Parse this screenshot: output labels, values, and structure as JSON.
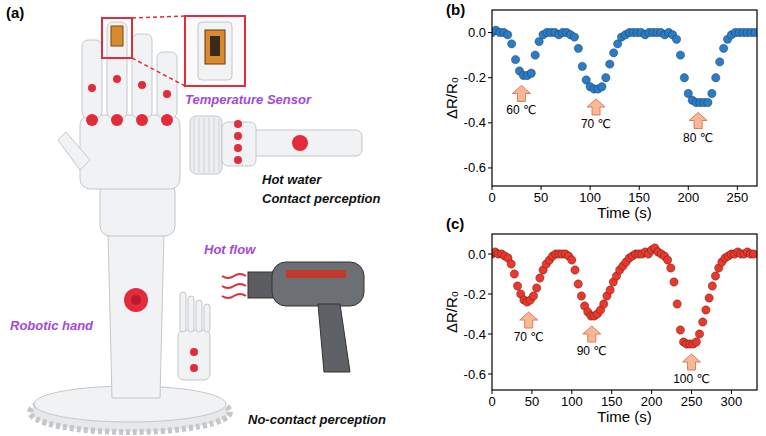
{
  "panel_labels": [
    "(a)",
    "(b)",
    "(c)"
  ],
  "illustration": {
    "labels": {
      "temperature_sensor": "Temperature Sensor",
      "hot_water": "Hot water",
      "contact_perception": "Contact perception",
      "robotic_hand": "Robotic hand",
      "hot_flow": "Hot flow",
      "no_contact_perception": "No-contact perception"
    }
  },
  "chart_data": [
    {
      "type": "scatter",
      "x_label": "Time (s)",
      "y_label": "ΔR/R₀",
      "color": "#2b7cc6",
      "marker": "circle",
      "x": [
        0,
        4,
        8,
        12,
        16,
        20,
        24,
        28,
        32,
        36,
        40,
        44,
        48,
        52,
        56,
        60,
        64,
        68,
        72,
        76,
        80,
        84,
        88,
        92,
        96,
        100,
        104,
        108,
        112,
        116,
        120,
        124,
        128,
        132,
        136,
        140,
        144,
        148,
        152,
        156,
        160,
        164,
        168,
        172,
        176,
        180,
        184,
        188,
        192,
        196,
        200,
        204,
        208,
        212,
        216,
        220,
        224,
        228,
        232,
        236,
        240,
        244,
        248,
        252,
        256,
        260,
        264,
        268
      ],
      "values": [
        0.0,
        0.01,
        0.0,
        0.0,
        -0.01,
        -0.05,
        -0.12,
        -0.17,
        -0.19,
        -0.19,
        -0.18,
        -0.1,
        -0.04,
        -0.01,
        0.0,
        0.0,
        0.0,
        -0.01,
        0.0,
        0.0,
        -0.01,
        -0.02,
        -0.07,
        -0.15,
        -0.21,
        -0.24,
        -0.25,
        -0.25,
        -0.24,
        -0.2,
        -0.14,
        -0.09,
        -0.05,
        -0.02,
        -0.01,
        0.0,
        0.0,
        0.0,
        0.0,
        -0.01,
        0.0,
        0.0,
        0.0,
        0.0,
        -0.01,
        0.0,
        -0.01,
        -0.03,
        -0.1,
        -0.2,
        -0.27,
        -0.3,
        -0.31,
        -0.31,
        -0.31,
        -0.31,
        -0.27,
        -0.2,
        -0.13,
        -0.07,
        -0.03,
        -0.01,
        0.0,
        0.0,
        0.0,
        0.0,
        0.0,
        0.0
      ],
      "xlim": [
        0,
        270
      ],
      "xticks": [
        0,
        50,
        100,
        150,
        200,
        250
      ],
      "ylim": [
        -0.68,
        0.1
      ],
      "yticks": [
        -0.6,
        -0.4,
        -0.2,
        {
          "value": 0,
          "label": "0.0"
        }
      ],
      "annotations": [
        {
          "text": "60 ℃",
          "x": 30
        },
        {
          "text": "70 ℃",
          "x": 106
        },
        {
          "text": "80 ℃",
          "x": 210
        }
      ]
    },
    {
      "type": "scatter",
      "x_label": "Time (s)",
      "y_label": "ΔR/R₀",
      "color": "#e8392b",
      "marker": "circle",
      "x": [
        0,
        4,
        8,
        12,
        16,
        20,
        24,
        28,
        32,
        36,
        40,
        44,
        48,
        52,
        56,
        60,
        64,
        68,
        72,
        76,
        80,
        84,
        88,
        92,
        96,
        100,
        104,
        108,
        112,
        116,
        120,
        124,
        128,
        132,
        136,
        140,
        144,
        148,
        152,
        156,
        160,
        164,
        168,
        172,
        176,
        180,
        184,
        188,
        192,
        196,
        200,
        204,
        208,
        212,
        216,
        220,
        224,
        228,
        232,
        236,
        240,
        244,
        248,
        252,
        256,
        260,
        264,
        268,
        272,
        276,
        280,
        284,
        288,
        292,
        296,
        300,
        304,
        308,
        312,
        316,
        320,
        324,
        328
      ],
      "values": [
        0.0,
        0.01,
        0.0,
        0.0,
        -0.01,
        -0.02,
        -0.05,
        -0.1,
        -0.16,
        -0.2,
        -0.23,
        -0.24,
        -0.23,
        -0.21,
        -0.17,
        -0.12,
        -0.08,
        -0.05,
        -0.03,
        -0.01,
        0.0,
        0.0,
        0.0,
        0.0,
        -0.01,
        -0.03,
        -0.08,
        -0.15,
        -0.21,
        -0.26,
        -0.29,
        -0.31,
        -0.31,
        -0.3,
        -0.28,
        -0.25,
        -0.21,
        -0.18,
        -0.14,
        -0.11,
        -0.08,
        -0.06,
        -0.04,
        -0.02,
        -0.01,
        0.0,
        0.0,
        0.0,
        0.01,
        0.0,
        0.02,
        0.03,
        0.01,
        0.0,
        -0.01,
        -0.03,
        -0.07,
        -0.14,
        -0.25,
        -0.38,
        -0.44,
        -0.45,
        -0.45,
        -0.45,
        -0.44,
        -0.4,
        -0.34,
        -0.28,
        -0.22,
        -0.16,
        -0.11,
        -0.07,
        -0.04,
        -0.02,
        -0.01,
        0.0,
        0.0,
        0.01,
        0.0,
        0.0,
        0.01,
        0.0,
        0.0
      ],
      "xlim": [
        0,
        332
      ],
      "xticks": [
        0,
        50,
        100,
        150,
        200,
        250,
        300
      ],
      "ylim": [
        -0.68,
        0.1
      ],
      "yticks": [
        -0.6,
        -0.4,
        -0.2,
        {
          "value": 0,
          "label": "0.0"
        }
      ],
      "annotations": [
        {
          "text": "70 ℃",
          "x": 46
        },
        {
          "text": "90 ℃",
          "x": 125
        },
        {
          "text": "100 ℃",
          "x": 250
        }
      ]
    }
  ]
}
